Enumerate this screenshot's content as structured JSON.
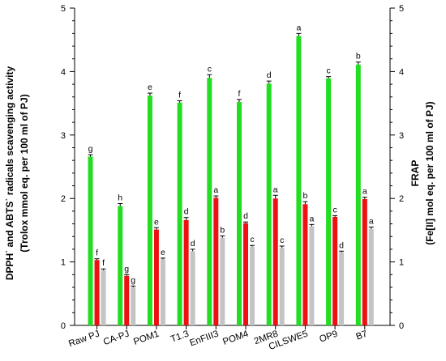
{
  "chart_data": {
    "type": "bar",
    "categories": [
      "Raw PJ",
      "CA-PJ",
      "POM1",
      "T1.3",
      "EnFIII3",
      "POM4",
      "2MR8",
      "CILSWE5",
      "OP9",
      "B7"
    ],
    "series": [
      {
        "color": "#22dd22",
        "axis": "left",
        "values": [
          2.66,
          1.88,
          3.62,
          3.51,
          3.9,
          3.52,
          3.81,
          4.56,
          3.89,
          4.11
        ],
        "errors": [
          0.03,
          0.04,
          0.04,
          0.03,
          0.05,
          0.04,
          0.04,
          0.04,
          0.03,
          0.04
        ],
        "letters": [
          "g",
          "h",
          "e",
          "f",
          "c",
          "f",
          "d",
          "a",
          "c",
          "b"
        ]
      },
      {
        "color": "#ee1111",
        "axis": "left",
        "values": [
          1.03,
          0.78,
          1.51,
          1.66,
          2.01,
          1.61,
          2.0,
          1.91,
          1.71,
          1.99
        ],
        "errors": [
          0.02,
          0.02,
          0.03,
          0.04,
          0.03,
          0.02,
          0.05,
          0.04,
          0.02,
          0.03
        ],
        "letters": [
          "f",
          "g",
          "e",
          "d",
          "a",
          "d",
          "a",
          "b",
          "c",
          "a"
        ]
      },
      {
        "color": "#c4c4c4",
        "axis": "right",
        "values": [
          0.87,
          0.6,
          1.04,
          1.17,
          1.38,
          1.24,
          1.22,
          1.56,
          1.15,
          1.52
        ],
        "errors": [
          0.02,
          0.02,
          0.02,
          0.03,
          0.03,
          0.02,
          0.03,
          0.03,
          0.02,
          0.03
        ],
        "letters": [
          "f",
          "g",
          "e",
          "d",
          "b",
          "c",
          "c",
          "a",
          "d",
          "a"
        ]
      }
    ],
    "y_left": {
      "label_line1": "DPPH˙ and ABTS˙ radicals scavenging activity",
      "label_line2": "(Trolox mmol eq. per 100 ml of PJ)",
      "range": [
        0,
        5
      ],
      "ticks": [
        "0",
        "1",
        "2",
        "3",
        "4",
        "5"
      ]
    },
    "y_right": {
      "label_line1": "FRAP",
      "label_line2": "(Fe[II] mol eq. per 100 ml of PJ)",
      "range": [
        0,
        5
      ],
      "ticks": [
        "0",
        "1",
        "2",
        "3",
        "4",
        "5"
      ]
    },
    "grid": false,
    "legend": "none"
  }
}
